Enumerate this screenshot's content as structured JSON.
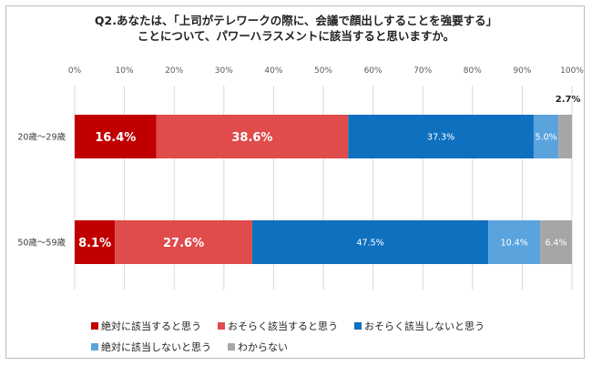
{
  "title": {
    "line1": "Q2.あなたは、「上司がテレワークの際に、会議で顔出しすることを強要する」",
    "line2": "ことについて、パワーハラスメントに該当すると思いますか。"
  },
  "chart_data": {
    "type": "bar",
    "orientation": "horizontal",
    "stacked": true,
    "xlim": [
      0,
      100
    ],
    "x_ticks": [
      "0%",
      "10%",
      "20%",
      "30%",
      "40%",
      "50%",
      "60%",
      "70%",
      "80%",
      "90%",
      "100%"
    ],
    "categories": [
      "20歳～29歳",
      "50歳～59歳"
    ],
    "series": [
      {
        "name": "絶対に該当すると思う",
        "color": "#C00000",
        "values": [
          16.4,
          8.1
        ],
        "labels": [
          "16.4%",
          "8.1%"
        ]
      },
      {
        "name": "おそらく該当すると思う",
        "color": "#E04B4B",
        "values": [
          38.6,
          27.6
        ],
        "labels": [
          "38.6%",
          "27.6%"
        ]
      },
      {
        "name": "おそらく該当しないと思う",
        "color": "#1070C0",
        "values": [
          37.3,
          47.5
        ],
        "labels": [
          "37.3%",
          "47.5%"
        ]
      },
      {
        "name": "絶対に該当しないと思う",
        "color": "#5BA3DC",
        "values": [
          5.0,
          10.4
        ],
        "labels": [
          "5.0%",
          "10.4%"
        ]
      },
      {
        "name": "わからない",
        "color": "#A6A6A6",
        "values": [
          2.7,
          6.4
        ],
        "labels": [
          "2.7%",
          "6.4%"
        ]
      }
    ],
    "gridlines": "vertical",
    "legend_position": "bottom"
  }
}
